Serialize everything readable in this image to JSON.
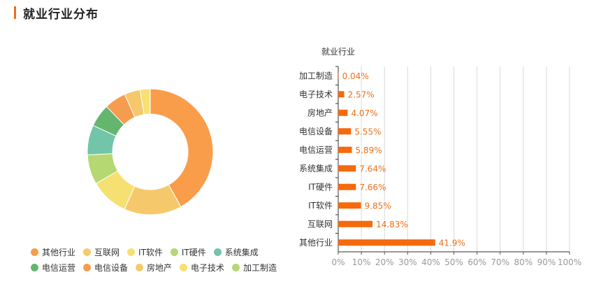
{
  "section": {
    "title": "就业行业分布"
  },
  "chart_data": [
    {
      "type": "pie",
      "variant": "donut",
      "categories": [
        "其他行业",
        "互联网",
        "IT软件",
        "IT硬件",
        "系统集成",
        "电信运营",
        "电信设备",
        "房地产",
        "电子技术",
        "加工制造"
      ],
      "values": [
        41.9,
        14.83,
        9.85,
        7.66,
        7.64,
        5.89,
        5.55,
        4.07,
        2.57,
        0.04
      ],
      "colors": [
        "#f99d4b",
        "#f5c96b",
        "#f7e072",
        "#b5d873",
        "#72c5a8",
        "#64b66f",
        "#f59c4e",
        "#f5c96b",
        "#f7e072",
        "#b5d873"
      ],
      "legend": "bottom"
    },
    {
      "type": "bar",
      "orientation": "horizontal",
      "title": "就业行业",
      "categories": [
        "加工制造",
        "电子技术",
        "房地产",
        "电信设备",
        "电信运营",
        "系统集成",
        "IT硬件",
        "IT软件",
        "互联网",
        "其他行业"
      ],
      "values": [
        0.04,
        2.57,
        4.07,
        5.55,
        5.89,
        7.64,
        7.66,
        9.85,
        14.83,
        41.9
      ],
      "data_labels": [
        "0.04%",
        "2.57%",
        "4.07%",
        "5.55%",
        "5.89%",
        "7.64%",
        "7.66%",
        "9.85%",
        "14.83%",
        "41.9%"
      ],
      "xlim": [
        0,
        100
      ],
      "xticks": [
        "0%",
        "10%",
        "20%",
        "30%",
        "40%",
        "50%",
        "60%",
        "70%",
        "80%",
        "90%",
        "100%"
      ],
      "grid": true,
      "bar_color": "#f6690c",
      "label_color": "#e8711c"
    }
  ]
}
